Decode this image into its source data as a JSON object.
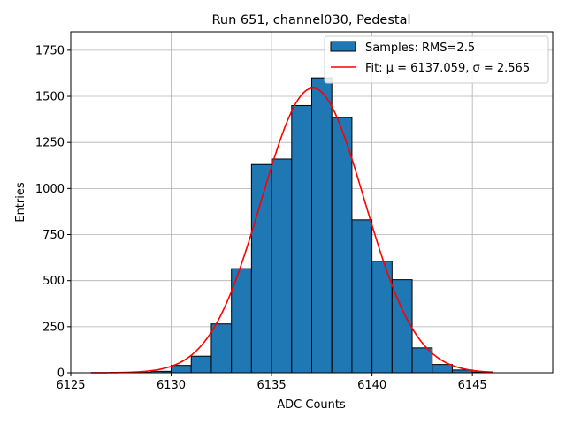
{
  "chart_data": {
    "type": "bar",
    "title": "Run 651, channel030, Pedestal",
    "xlabel": "ADC Counts",
    "ylabel": "Entries",
    "xlim": [
      6125,
      6149
    ],
    "ylim": [
      0,
      1850
    ],
    "xticks": [
      "6125",
      "6130",
      "6135",
      "6140",
      "6145"
    ],
    "yticks": [
      "0",
      "250",
      "500",
      "750",
      "1000",
      "1250",
      "1500",
      "1750"
    ],
    "grid": true,
    "legend_position": "top-right",
    "bin_width": 1,
    "series": [
      {
        "name": "Samples: RMS=2.5",
        "kind": "histogram",
        "color": "#1f77b4",
        "edgecolor": "#000000",
        "bins": [
          {
            "x": 6128,
            "value": 2
          },
          {
            "x": 6129,
            "value": 8
          },
          {
            "x": 6130,
            "value": 40
          },
          {
            "x": 6131,
            "value": 90
          },
          {
            "x": 6132,
            "value": 265
          },
          {
            "x": 6133,
            "value": 565
          },
          {
            "x": 6134,
            "value": 1130
          },
          {
            "x": 6135,
            "value": 1160
          },
          {
            "x": 6136,
            "value": 1450
          },
          {
            "x": 6137,
            "value": 1600
          },
          {
            "x": 6138,
            "value": 1385
          },
          {
            "x": 6139,
            "value": 830
          },
          {
            "x": 6140,
            "value": 605
          },
          {
            "x": 6141,
            "value": 505
          },
          {
            "x": 6142,
            "value": 135
          },
          {
            "x": 6143,
            "value": 45
          },
          {
            "x": 6144,
            "value": 15
          },
          {
            "x": 6145,
            "value": 4
          }
        ]
      },
      {
        "name": "Fit: μ = 6137.059, σ = 2.565",
        "kind": "gaussian-fit",
        "color": "#ff0000",
        "mu": 6137.059,
        "sigma": 2.565,
        "amplitude": 1545,
        "x_range": [
          6126,
          6146
        ]
      }
    ]
  }
}
